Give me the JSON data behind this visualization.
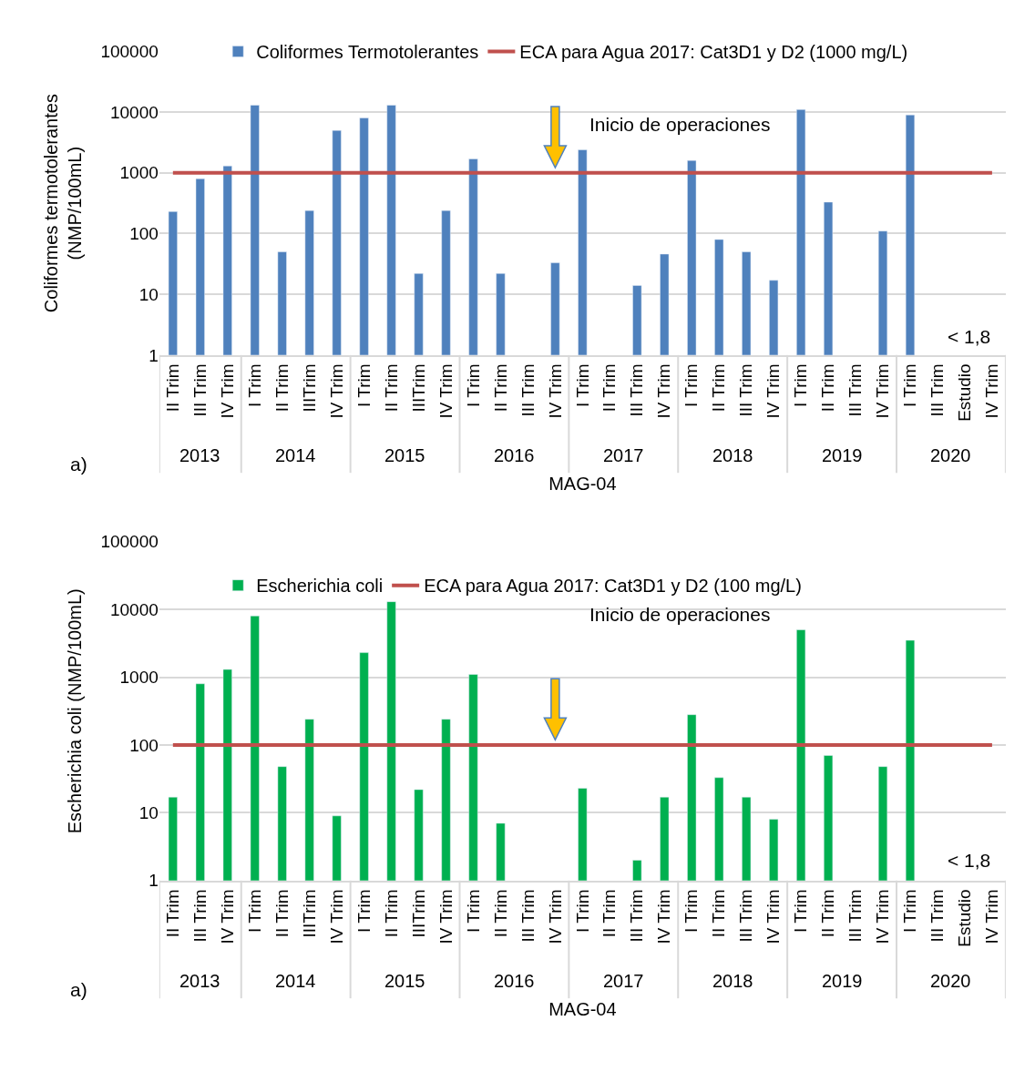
{
  "chart_data": [
    {
      "type": "bar",
      "xlabel": "MAG-04",
      "ylabel": "Coliformes termotolerantes\n(NMP/100mL)",
      "categories": [
        [
          "2013",
          "II Trim"
        ],
        [
          null,
          "III Trim"
        ],
        [
          null,
          "IV Trim"
        ],
        [
          "2014",
          "I Trim"
        ],
        [
          null,
          "II Trim"
        ],
        [
          null,
          "IIITrim"
        ],
        [
          null,
          "IV Trim"
        ],
        [
          "2015",
          "I Trim"
        ],
        [
          null,
          "II Trim"
        ],
        [
          null,
          "IIITrim"
        ],
        [
          null,
          "IV Trim"
        ],
        [
          "2016",
          "I Trim"
        ],
        [
          null,
          "II Trim"
        ],
        [
          null,
          "III Trim"
        ],
        [
          null,
          "IV Trim"
        ],
        [
          "2017",
          "I Trim"
        ],
        [
          null,
          "II Trim"
        ],
        [
          null,
          "III Trim"
        ],
        [
          null,
          "IV Trim"
        ],
        [
          "2018",
          "I Trim"
        ],
        [
          null,
          "II Trim"
        ],
        [
          null,
          "III Trim"
        ],
        [
          null,
          "IV Trim"
        ],
        [
          "2019",
          "I Trim"
        ],
        [
          null,
          "II Trim"
        ],
        [
          null,
          "III Trim"
        ],
        [
          null,
          "IV Trim"
        ],
        [
          "2020",
          "I Trim"
        ],
        [
          null,
          "III Trim"
        ],
        [
          null,
          "Estudio"
        ],
        [
          null,
          "IV Trim"
        ]
      ],
      "series": [
        {
          "name": "Coliformes Termotolerantes",
          "color": "#4f81bd",
          "values": [
            230,
            800,
            1300,
            13000,
            50,
            240,
            5000,
            8000,
            13000,
            22,
            240,
            1700,
            22,
            null,
            33,
            2400,
            null,
            14,
            46,
            1600,
            80,
            50,
            17,
            11000,
            330,
            null,
            110,
            9000,
            null,
            null,
            null
          ]
        }
      ],
      "ref_lines": [
        {
          "axis": "y",
          "value": 1000,
          "label": "ECA para Agua 2017: Cat3D1 y D2 (1000 mg/L)",
          "color": "#c0504d"
        }
      ],
      "annotations": [
        "a)",
        "Inicio de operaciones",
        "< 1,8"
      ],
      "log": true,
      "ylim": [
        1,
        100000
      ],
      "yticks": [
        1,
        10,
        100,
        1000,
        10000,
        100000
      ],
      "grid": "y",
      "legend": "top"
    },
    {
      "type": "bar",
      "xlabel": "MAG-04",
      "ylabel": "Escherichia coli (NMP/100mL)",
      "categories": [
        [
          "2013",
          "II Trim"
        ],
        [
          null,
          "III Trim"
        ],
        [
          null,
          "IV Trim"
        ],
        [
          "2014",
          "I Trim"
        ],
        [
          null,
          "II Trim"
        ],
        [
          null,
          "IIITrim"
        ],
        [
          null,
          "IV Trim"
        ],
        [
          "2015",
          "I Trim"
        ],
        [
          null,
          "II Trim"
        ],
        [
          null,
          "IIITrim"
        ],
        [
          null,
          "IV Trim"
        ],
        [
          "2016",
          "I Trim"
        ],
        [
          null,
          "II Trim"
        ],
        [
          null,
          "III Trim"
        ],
        [
          null,
          "IV Trim"
        ],
        [
          "2017",
          "I Trim"
        ],
        [
          null,
          "II Trim"
        ],
        [
          null,
          "III Trim"
        ],
        [
          null,
          "IV Trim"
        ],
        [
          "2018",
          "I Trim"
        ],
        [
          null,
          "II Trim"
        ],
        [
          null,
          "III Trim"
        ],
        [
          null,
          "IV Trim"
        ],
        [
          "2019",
          "I Trim"
        ],
        [
          null,
          "II Trim"
        ],
        [
          null,
          "III Trim"
        ],
        [
          null,
          "IV Trim"
        ],
        [
          "2020",
          "I Trim"
        ],
        [
          null,
          "III Trim"
        ],
        [
          null,
          "Estudio"
        ],
        [
          null,
          "IV Trim"
        ]
      ],
      "series": [
        {
          "name": "Escherichia coli",
          "color": "#00b050",
          "values": [
            17,
            800,
            1300,
            8000,
            48,
            240,
            9,
            2300,
            13000,
            22,
            240,
            1100,
            7,
            null,
            null,
            23,
            null,
            2,
            17,
            280,
            33,
            17,
            8,
            5000,
            70,
            null,
            48,
            3500,
            null,
            null,
            null
          ]
        }
      ],
      "ref_lines": [
        {
          "axis": "y",
          "value": 100,
          "label": "ECA para Agua 2017: Cat3D1 y D2 (100 mg/L)",
          "color": "#c0504d"
        }
      ],
      "annotations": [
        "a)",
        "Inicio de operaciones",
        "< 1,8"
      ],
      "log": true,
      "ylim": [
        1,
        100000
      ],
      "yticks": [
        1,
        10,
        100,
        1000,
        10000,
        100000
      ],
      "grid": "y",
      "legend": "top"
    }
  ]
}
